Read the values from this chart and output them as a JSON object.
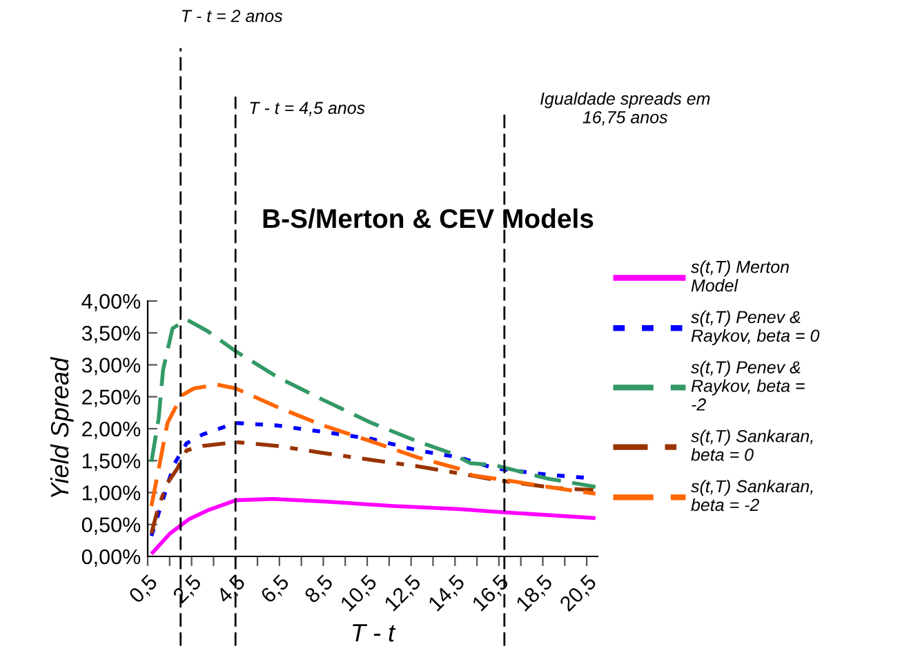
{
  "chart_data": {
    "type": "line",
    "title": "B-S/Merton & CEV Models",
    "xlabel": "T - t",
    "ylabel": "Yield Spread",
    "xlim": [
      0.5,
      21
    ],
    "ylim": [
      0,
      4
    ],
    "xticks": [
      {
        "value": 0.5,
        "label": "0,5"
      },
      {
        "value": 1.5,
        "label": null
      },
      {
        "value": 2.5,
        "label": "2,5"
      },
      {
        "value": 3.5,
        "label": null
      },
      {
        "value": 4.5,
        "label": "4,5"
      },
      {
        "value": 5.5,
        "label": null
      },
      {
        "value": 6.5,
        "label": "6,5"
      },
      {
        "value": 7.5,
        "label": null
      },
      {
        "value": 8.5,
        "label": "8,5"
      },
      {
        "value": 9.5,
        "label": null
      },
      {
        "value": 10.5,
        "label": "10,5"
      },
      {
        "value": 11.5,
        "label": null
      },
      {
        "value": 12.5,
        "label": "12,5"
      },
      {
        "value": 13.5,
        "label": null
      },
      {
        "value": 14.5,
        "label": "14,5"
      },
      {
        "value": 15.5,
        "label": null
      },
      {
        "value": 16.5,
        "label": "16,5"
      },
      {
        "value": 17.5,
        "label": null
      },
      {
        "value": 18.5,
        "label": "18,5"
      },
      {
        "value": 19.5,
        "label": null
      },
      {
        "value": 20.5,
        "label": "20,5"
      }
    ],
    "yticks": [
      {
        "value": 0,
        "label": "0,00%"
      },
      {
        "value": 0.5,
        "label": "0,50%"
      },
      {
        "value": 1,
        "label": "1,00%"
      },
      {
        "value": 1.5,
        "label": "1,50%"
      },
      {
        "value": 2,
        "label": "2,00%"
      },
      {
        "value": 2.5,
        "label": "2,50%"
      },
      {
        "value": 3,
        "label": "3,00%"
      },
      {
        "value": 3.5,
        "label": "3,50%"
      },
      {
        "value": 4,
        "label": "4,00%"
      }
    ],
    "grid": false,
    "legend": "right",
    "marker": "none",
    "ref_lines": [
      {
        "axis": "x",
        "value": 2,
        "label": "T - t = 2 anos",
        "color": "#000000",
        "line_style": "dashed"
      },
      {
        "axis": "x",
        "value": 4.5,
        "label": "T - t = 4,5 anos",
        "color": "#000000",
        "line_style": "dashed"
      },
      {
        "axis": "x",
        "value": 16.75,
        "label": "Igualdade spreads em\n16,75 anos",
        "color": "#000000",
        "line_style": "dashed"
      }
    ],
    "series": [
      {
        "name": "s(t,T) Merton Model",
        "color": "#ff00ff",
        "line_style": "solid",
        "x": [
          0.67,
          1.52,
          2.37,
          3.22,
          4.52,
          6.2,
          8.54,
          11.7,
          14.7,
          16.3,
          20.9
        ],
        "values": [
          0.04,
          0.36,
          0.58,
          0.72,
          0.88,
          0.9,
          0.86,
          0.79,
          0.74,
          0.7,
          0.6
        ]
      },
      {
        "name": "s(t,T) Penev & Raykov, beta = 0",
        "color": "#0000ff",
        "line_style": "dotted",
        "x": [
          0.67,
          1.7,
          2.27,
          3.0,
          4.52,
          6.4,
          8.5,
          10.7,
          12.8,
          14.7,
          16.3,
          18.7,
          20.5
        ],
        "values": [
          0.32,
          1.44,
          1.77,
          1.91,
          2.09,
          2.05,
          1.95,
          1.84,
          1.66,
          1.55,
          1.38,
          1.28,
          1.23
        ]
      },
      {
        "name": "s(t,T) Penev & Raykov, beta = -2",
        "color": "#339966",
        "line_style": "dashed",
        "x": [
          0.67,
          1.0,
          1.2,
          1.63,
          2.27,
          3.22,
          4.52,
          6.4,
          8.5,
          10.7,
          12.8,
          14.3,
          15.2,
          16.3,
          18.7,
          20.9
        ],
        "values": [
          1.48,
          2.16,
          2.92,
          3.57,
          3.71,
          3.53,
          3.21,
          2.81,
          2.45,
          2.09,
          1.8,
          1.62,
          1.46,
          1.43,
          1.22,
          1.09
        ]
      },
      {
        "name": "s(t,T) Sankaran, beta = 0",
        "color": "#993300",
        "line_style": "dashdot",
        "x": [
          0.67,
          1.0,
          1.4,
          1.84,
          2.27,
          3.0,
          4.52,
          6.4,
          8.5,
          10.7,
          12.8,
          14.7,
          16.3,
          19.1,
          20.8
        ],
        "values": [
          0.36,
          0.79,
          1.15,
          1.37,
          1.66,
          1.73,
          1.79,
          1.73,
          1.62,
          1.51,
          1.41,
          1.3,
          1.2,
          1.07,
          1.04
        ]
      },
      {
        "name": "s(t,T) Sankaran, beta = -2",
        "color": "#ff6600",
        "line_style": "dashed",
        "x": [
          0.67,
          1.0,
          1.4,
          2.05,
          2.6,
          3.65,
          4.52,
          6.4,
          8.5,
          10.7,
          12.8,
          14.7,
          15.3,
          16.3,
          19.1,
          20.9
        ],
        "values": [
          0.79,
          1.37,
          2.09,
          2.52,
          2.63,
          2.69,
          2.63,
          2.34,
          2.05,
          1.8,
          1.55,
          1.37,
          1.27,
          1.22,
          1.07,
          0.98
        ]
      }
    ]
  }
}
